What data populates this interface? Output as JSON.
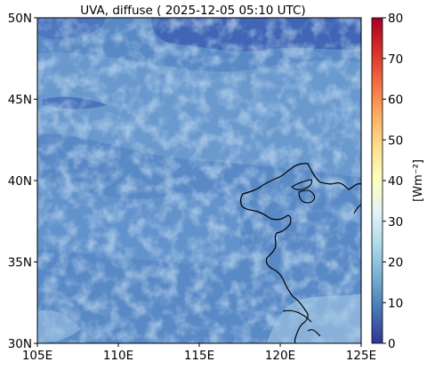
{
  "title": "UVA, diffuse ( 2025-12-05 05:10 UTC)",
  "map": {
    "lon_ticks": [
      "105E",
      "110E",
      "115E",
      "120E",
      "125E"
    ],
    "lat_ticks": [
      "30N",
      "35N",
      "40N",
      "45N",
      "50N"
    ],
    "lon_range": [
      105,
      125
    ],
    "lat_range": [
      30,
      50
    ]
  },
  "colorbar": {
    "label": "[Wm⁻²]",
    "ticks": [
      "0",
      "10",
      "20",
      "30",
      "40",
      "50",
      "60",
      "70",
      "80"
    ],
    "range": [
      0,
      80
    ],
    "colormap": "RdYlBu_r",
    "stops": [
      "#313695",
      "#4575b4",
      "#74add1",
      "#abd9e9",
      "#e0f3f8",
      "#ffffbf",
      "#fee090",
      "#fdae61",
      "#f46d43",
      "#d73027",
      "#a50026"
    ]
  },
  "colors": {
    "field_base": "#5a8ac6",
    "field_dark": "#3a5eb0",
    "field_light": "#9cc4e4",
    "coastline": "#000000"
  }
}
